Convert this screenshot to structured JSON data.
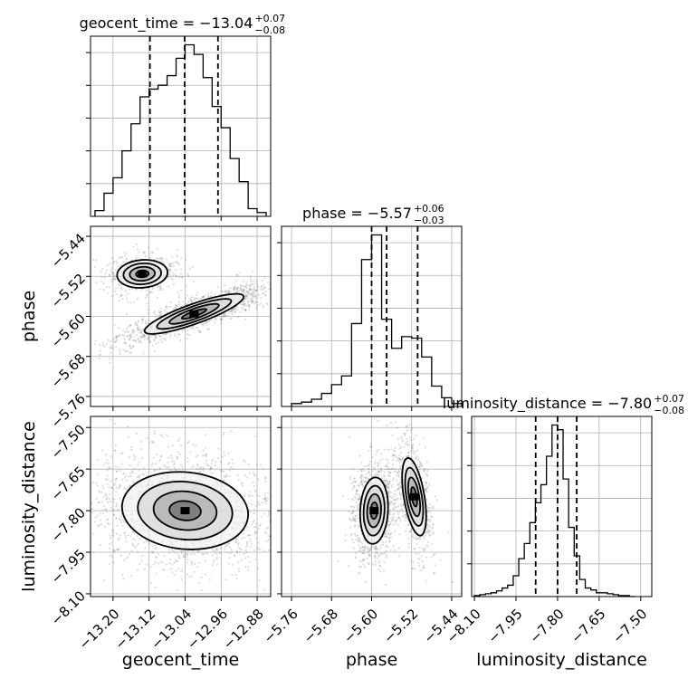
{
  "chart_data": {
    "type": "corner",
    "parameters": [
      {
        "name": "geocent_time",
        "label": "geocent_time",
        "range": [
          -13.25,
          -12.85
        ],
        "ticks": [
          "-13.20",
          "-13.12",
          "-13.04",
          "-12.96",
          "-12.88"
        ],
        "tick_values": [
          -13.2,
          -13.12,
          -13.04,
          -12.96,
          -12.88
        ],
        "title": {
          "main": "geocent_time = −13.04",
          "upper": "+0.07",
          "lower": "−0.08"
        },
        "quantiles": [
          -13.118,
          -13.041,
          -12.967
        ]
      },
      {
        "name": "phase",
        "label": "phase",
        "range": [
          -5.78,
          -5.42
        ],
        "ticks": [
          "-5.76",
          "-5.68",
          "-5.60",
          "-5.52",
          "-5.44"
        ],
        "tick_values": [
          -5.76,
          -5.68,
          -5.6,
          -5.52,
          -5.44
        ],
        "title": {
          "main": "phase = −5.57",
          "upper": "+0.06",
          "lower": "−0.03"
        },
        "quantiles": [
          -5.6,
          -5.57,
          -5.508
        ]
      },
      {
        "name": "luminosity_distance",
        "label": "luminosity_distance",
        "range": [
          -8.11,
          -7.46
        ],
        "ticks": [
          "-8.10",
          "-7.95",
          "-7.80",
          "-7.65",
          "-7.50"
        ],
        "tick_values": [
          -8.1,
          -7.95,
          -7.8,
          -7.65,
          -7.5
        ],
        "title": {
          "main": "luminosity_distance = −7.80",
          "upper": "+0.07",
          "lower": "−0.08"
        },
        "quantiles": [
          -7.879,
          -7.8,
          -7.731
        ]
      }
    ],
    "histograms": {
      "geocent_time": {
        "bin_edges": [
          -13.24,
          -13.22,
          -13.2,
          -13.18,
          -13.16,
          -13.14,
          -13.12,
          -13.1,
          -13.08,
          -13.06,
          -13.04,
          -13.02,
          -13.0,
          -12.98,
          -12.96,
          -12.94,
          -12.92,
          -12.9,
          -12.88,
          -12.86
        ],
        "counts": [
          3,
          12,
          20,
          34,
          48,
          62,
          66,
          68,
          73,
          82,
          89,
          84,
          72,
          57,
          46,
          30,
          18,
          4,
          2
        ]
      },
      "phase": {
        "bin_edges": [
          -5.76,
          -5.74,
          -5.72,
          -5.7,
          -5.68,
          -5.66,
          -5.64,
          -5.62,
          -5.6,
          -5.58,
          -5.56,
          -5.54,
          -5.52,
          -5.5,
          -5.48,
          -5.46,
          -5.44,
          -5.42
        ],
        "counts": [
          2,
          3,
          5,
          9,
          15,
          21,
          57,
          101,
          118,
          60,
          40,
          48,
          47,
          34,
          14,
          6,
          2
        ]
      },
      "luminosity_distance": {
        "bin_edges": [
          -8.1,
          -8.08,
          -8.06,
          -8.04,
          -8.02,
          -8.0,
          -7.98,
          -7.96,
          -7.94,
          -7.92,
          -7.9,
          -7.88,
          -7.86,
          -7.84,
          -7.82,
          -7.8,
          -7.78,
          -7.76,
          -7.74,
          -7.72,
          -7.7,
          -7.68,
          -7.66,
          -7.64,
          -7.62,
          -7.6,
          -7.58,
          -7.56,
          -7.54,
          -7.52
        ],
        "counts": [
          1,
          2,
          3,
          4,
          6,
          9,
          12,
          22,
          40,
          56,
          78,
          99,
          118,
          148,
          181,
          176,
          124,
          73,
          43,
          18,
          9,
          7,
          4,
          4,
          3,
          2,
          1,
          1,
          0
        ]
      }
    },
    "modes": {
      "geocent_time_phase": [
        {
          "mean": [
            -13.135,
            -5.515
          ],
          "std": [
            0.028,
            0.014
          ],
          "corr": 0.1,
          "weight": 0.27
        },
        {
          "mean": [
            -13.02,
            -5.595
          ],
          "std": [
            0.055,
            0.02
          ],
          "corr": 0.85,
          "weight": 0.73
        }
      ],
      "geocent_time_luminosity_distance": [
        {
          "mean": [
            -13.04,
            -7.8
          ],
          "std": [
            0.07,
            0.07
          ],
          "corr": -0.1,
          "weight": 1.0
        }
      ],
      "phase_luminosity_distance": [
        {
          "mean": [
            -5.595,
            -7.8
          ],
          "std": [
            0.014,
            0.06
          ],
          "corr": 0.1,
          "weight": 0.6
        },
        {
          "mean": [
            -5.515,
            -7.75
          ],
          "std": [
            0.012,
            0.07
          ],
          "corr": -0.5,
          "weight": 0.4
        }
      ]
    },
    "contour_levels_sigma": [
      0.5,
      1.0,
      1.5,
      2.0
    ],
    "quantile_line_style": "dashed",
    "grid": true,
    "colors": {
      "line": "#000000",
      "grid": "#b0b0b0",
      "points": "#666666"
    }
  }
}
